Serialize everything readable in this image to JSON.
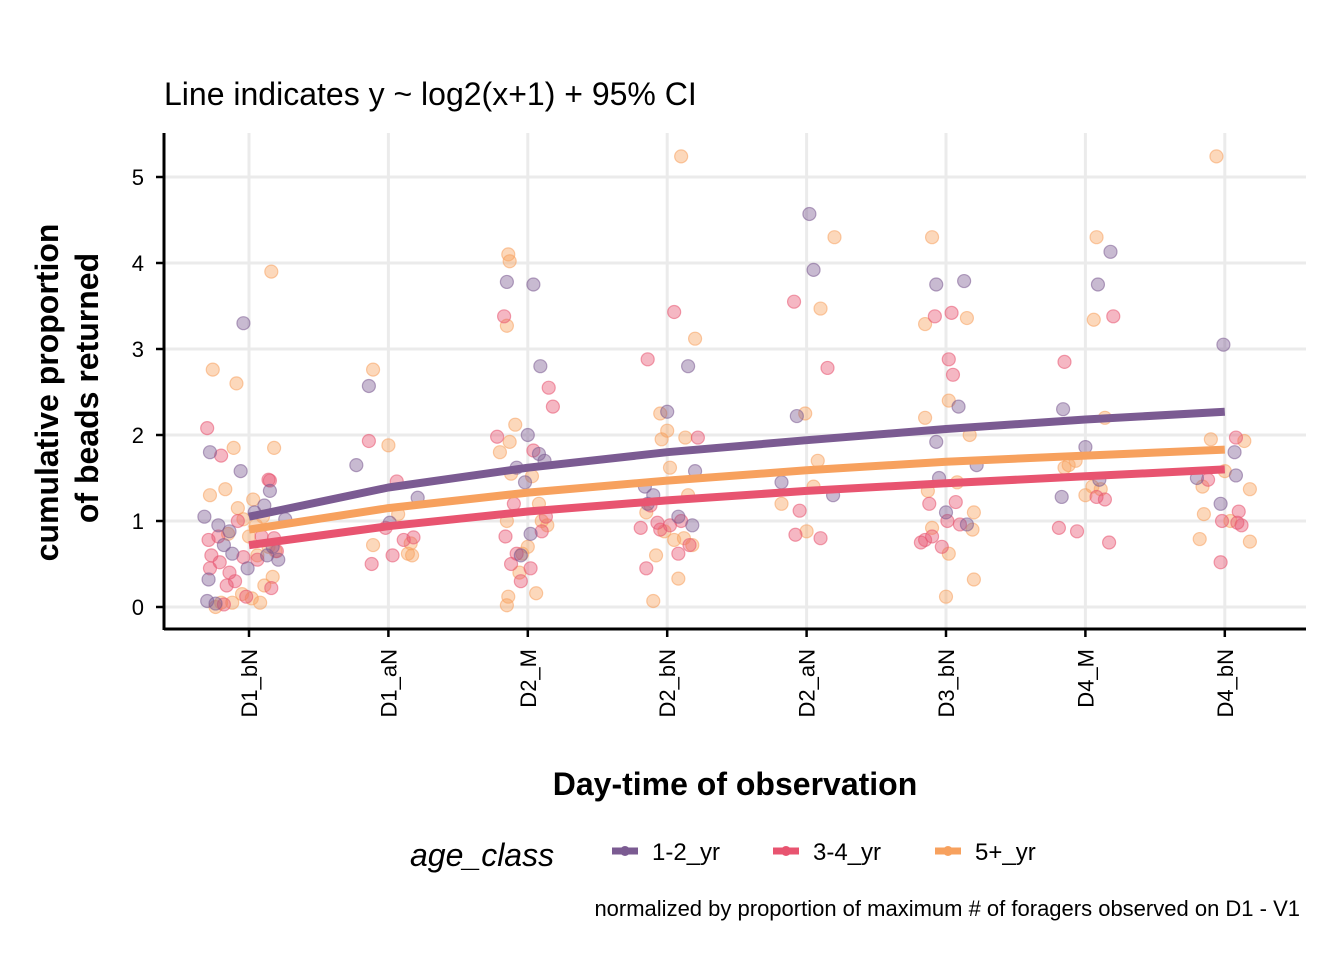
{
  "chart_data": {
    "type": "scatter",
    "title": "Line indicates y ~ log2(x+1) + 95% CI",
    "xlabel": "Day-time of observation",
    "ylabel_lines": [
      "cumulative proportion",
      "of beads returned"
    ],
    "caption": "normalized by proportion of maximum # of foragers observed on D1 - V1",
    "categories": [
      "D1_bN",
      "D1_aN",
      "D2_M",
      "D2_bN",
      "D2_aN",
      "D3_bN",
      "D4_M",
      "D4_bN"
    ],
    "yticks": [
      0,
      1,
      2,
      3,
      4,
      5
    ],
    "ylim": [
      -0.27,
      5.5
    ],
    "grid": true,
    "legend": {
      "title": "age_class",
      "position": "bottom",
      "entries": [
        "1-2_yr",
        "3-4_yr",
        "5+_yr"
      ]
    },
    "colors": {
      "1-2_yr": "#7b5b92",
      "3-4_yr": "#e85470",
      "5+_yr": "#f7a15e"
    },
    "series": [
      {
        "name": "1-2_yr",
        "fit": [
          1.05,
          1.39,
          1.62,
          1.8,
          1.94,
          2.07,
          2.18,
          2.27
        ],
        "points": [
          [
            [
              -0.32,
              1.05
            ],
            [
              -0.3,
              0.07
            ],
            [
              -0.29,
              0.32
            ],
            [
              -0.28,
              1.8
            ],
            [
              -0.24,
              0.04
            ],
            [
              -0.22,
              0.95
            ],
            [
              -0.18,
              0.72
            ],
            [
              -0.14,
              0.88
            ],
            [
              -0.12,
              0.62
            ],
            [
              -0.06,
              1.58
            ],
            [
              -0.04,
              3.3
            ],
            [
              -0.01,
              0.45
            ],
            [
              0.04,
              1.1
            ],
            [
              0.11,
              1.18
            ],
            [
              0.13,
              0.6
            ],
            [
              0.15,
              1.35
            ],
            [
              0.17,
              0.7
            ],
            [
              0.21,
              0.55
            ],
            [
              0.26,
              1.02
            ]
          ],
          [
            [
              -0.23,
              1.65
            ],
            [
              -0.14,
              2.57
            ],
            [
              0.21,
              1.27
            ],
            [
              0.01,
              0.98
            ]
          ],
          [
            [
              -0.15,
              3.78
            ],
            [
              0.04,
              3.75
            ],
            [
              0.09,
              2.8
            ],
            [
              0.0,
              2.0
            ],
            [
              -0.02,
              1.45
            ],
            [
              0.08,
              1.78
            ],
            [
              -0.08,
              1.62
            ],
            [
              0.12,
              1.7
            ],
            [
              0.02,
              0.85
            ],
            [
              -0.05,
              0.6
            ]
          ],
          [
            [
              0.0,
              2.27
            ],
            [
              0.15,
              2.8
            ],
            [
              0.2,
              1.58
            ],
            [
              0.18,
              0.95
            ],
            [
              -0.16,
              1.4
            ],
            [
              -0.14,
              1.2
            ],
            [
              -0.1,
              1.3
            ],
            [
              0.08,
              1.05
            ]
          ],
          [
            [
              0.02,
              4.57
            ],
            [
              0.05,
              3.92
            ],
            [
              -0.07,
              2.22
            ],
            [
              0.19,
              1.3
            ],
            [
              -0.18,
              1.45
            ]
          ],
          [
            [
              0.13,
              3.79
            ],
            [
              -0.07,
              3.75
            ],
            [
              0.09,
              2.33
            ],
            [
              0.22,
              1.65
            ],
            [
              -0.07,
              1.92
            ],
            [
              0.0,
              1.1
            ],
            [
              0.15,
              0.96
            ],
            [
              -0.05,
              1.5
            ]
          ],
          [
            [
              0.09,
              3.75
            ],
            [
              0.18,
              4.13
            ],
            [
              -0.16,
              2.3
            ],
            [
              0.0,
              1.86
            ],
            [
              -0.17,
              1.28
            ],
            [
              0.1,
              1.48
            ]
          ],
          [
            [
              -0.01,
              3.05
            ],
            [
              0.07,
              1.8
            ],
            [
              -0.2,
              1.5
            ],
            [
              0.08,
              1.53
            ],
            [
              -0.03,
              1.2
            ]
          ]
        ]
      },
      {
        "name": "3-4_yr",
        "fit": [
          0.72,
          0.94,
          1.11,
          1.24,
          1.35,
          1.44,
          1.52,
          1.6
        ],
        "points": [
          [
            [
              -0.3,
              2.08
            ],
            [
              -0.29,
              0.78
            ],
            [
              -0.28,
              0.45
            ],
            [
              -0.27,
              0.6
            ],
            [
              -0.22,
              0.82
            ],
            [
              -0.2,
              1.76
            ],
            [
              -0.16,
              0.25
            ],
            [
              -0.18,
              0.03
            ],
            [
              -0.14,
              0.4
            ],
            [
              -0.1,
              0.3
            ],
            [
              -0.08,
              1.0
            ],
            [
              -0.04,
              0.58
            ],
            [
              -0.02,
              0.12
            ],
            [
              0.06,
              0.55
            ],
            [
              0.15,
              1.47
            ],
            [
              0.14,
              1.48
            ],
            [
              0.16,
              0.22
            ],
            [
              0.18,
              0.8
            ],
            [
              0.2,
              0.65
            ],
            [
              -0.21,
              0.52
            ],
            [
              0.09,
              0.82
            ]
          ],
          [
            [
              -0.14,
              1.93
            ],
            [
              0.06,
              1.46
            ],
            [
              -0.12,
              0.5
            ],
            [
              0.03,
              0.6
            ],
            [
              0.11,
              0.78
            ],
            [
              -0.02,
              0.92
            ],
            [
              0.18,
              0.81
            ]
          ],
          [
            [
              -0.22,
              1.98
            ],
            [
              -0.17,
              3.38
            ],
            [
              0.15,
              2.55
            ],
            [
              0.18,
              2.33
            ],
            [
              -0.16,
              0.82
            ],
            [
              -0.08,
              0.62
            ],
            [
              0.02,
              0.45
            ],
            [
              -0.1,
              1.2
            ],
            [
              0.04,
              1.82
            ],
            [
              -0.12,
              0.5
            ],
            [
              0.1,
              0.88
            ],
            [
              0.13,
              1.05
            ],
            [
              -0.05,
              0.3
            ]
          ],
          [
            [
              -0.14,
              2.88
            ],
            [
              0.05,
              3.43
            ],
            [
              0.22,
              1.97
            ],
            [
              -0.15,
              0.45
            ],
            [
              -0.05,
              0.9
            ],
            [
              0.1,
              1.0
            ],
            [
              0.16,
              0.72
            ],
            [
              -0.12,
              1.18
            ],
            [
              0.02,
              0.95
            ],
            [
              0.08,
              0.62
            ],
            [
              -0.19,
              0.92
            ],
            [
              -0.07,
              0.98
            ]
          ],
          [
            [
              -0.09,
              3.55
            ],
            [
              0.15,
              2.78
            ],
            [
              -0.08,
              0.84
            ],
            [
              0.1,
              0.8
            ],
            [
              -0.05,
              1.12
            ]
          ],
          [
            [
              0.04,
              3.42
            ],
            [
              -0.08,
              3.38
            ],
            [
              0.02,
              2.88
            ],
            [
              0.05,
              2.7
            ],
            [
              -0.12,
              1.2
            ],
            [
              -0.15,
              0.78
            ],
            [
              0.07,
              1.22
            ],
            [
              -0.18,
              0.75
            ],
            [
              -0.03,
              0.7
            ],
            [
              0.1,
              0.96
            ],
            [
              0.01,
              1.0
            ],
            [
              -0.1,
              0.82
            ]
          ],
          [
            [
              -0.15,
              2.85
            ],
            [
              0.2,
              3.38
            ],
            [
              -0.19,
              0.92
            ],
            [
              -0.06,
              0.88
            ],
            [
              0.17,
              0.75
            ],
            [
              0.14,
              1.25
            ],
            [
              0.08,
              1.28
            ]
          ],
          [
            [
              0.08,
              1.97
            ],
            [
              -0.03,
              0.52
            ],
            [
              -0.12,
              1.48
            ],
            [
              0.09,
              0.98
            ],
            [
              -0.02,
              1.0
            ],
            [
              0.1,
              1.11
            ],
            [
              0.12,
              0.95
            ]
          ]
        ]
      },
      {
        "name": "5+_yr",
        "fit": [
          0.9,
          1.15,
          1.33,
          1.47,
          1.59,
          1.69,
          1.76,
          1.83
        ],
        "points": [
          [
            [
              -0.26,
              2.76
            ],
            [
              -0.28,
              1.3
            ],
            [
              -0.09,
              2.6
            ],
            [
              -0.11,
              1.85
            ],
            [
              0.16,
              3.9
            ],
            [
              0.18,
              1.85
            ],
            [
              0.03,
              1.25
            ],
            [
              -0.17,
              1.37
            ],
            [
              -0.08,
              1.15
            ],
            [
              -0.04,
              1.02
            ],
            [
              0.0,
              0.82
            ],
            [
              0.05,
              0.95
            ],
            [
              0.1,
              1.05
            ],
            [
              0.14,
              0.7
            ],
            [
              0.19,
              0.65
            ],
            [
              -0.24,
              0.0
            ],
            [
              -0.2,
              0.05
            ],
            [
              -0.12,
              0.05
            ],
            [
              -0.05,
              0.15
            ],
            [
              0.02,
              0.1
            ],
            [
              0.08,
              0.05
            ],
            [
              0.11,
              0.25
            ],
            [
              0.17,
              0.35
            ],
            [
              -0.15,
              0.85
            ],
            [
              0.06,
              0.6
            ]
          ],
          [
            [
              -0.11,
              2.76
            ],
            [
              0.0,
              1.88
            ],
            [
              -0.11,
              0.72
            ],
            [
              0.16,
              0.74
            ],
            [
              0.17,
              0.6
            ],
            [
              0.14,
              0.62
            ],
            [
              0.07,
              1.08
            ]
          ],
          [
            [
              -0.14,
              4.1
            ],
            [
              -0.13,
              4.02
            ],
            [
              -0.15,
              3.27
            ],
            [
              -0.13,
              1.92
            ],
            [
              -0.09,
              2.12
            ],
            [
              -0.2,
              1.8
            ],
            [
              -0.15,
              1.0
            ],
            [
              -0.14,
              0.12
            ],
            [
              -0.15,
              0.02
            ],
            [
              0.06,
              0.16
            ],
            [
              0.1,
              1.0
            ],
            [
              0.08,
              1.2
            ],
            [
              -0.04,
              0.62
            ],
            [
              0.03,
              1.52
            ],
            [
              0.14,
              0.95
            ],
            [
              -0.12,
              1.55
            ],
            [
              -0.06,
              0.4
            ],
            [
              0.0,
              0.7
            ]
          ],
          [
            [
              0.1,
              5.24
            ],
            [
              0.2,
              3.12
            ],
            [
              -0.05,
              2.25
            ],
            [
              0.13,
              1.97
            ],
            [
              -0.04,
              1.95
            ],
            [
              0.0,
              2.05
            ],
            [
              -0.15,
              1.1
            ],
            [
              0.08,
              0.33
            ],
            [
              -0.1,
              0.07
            ],
            [
              0.05,
              0.78
            ],
            [
              -0.08,
              0.6
            ],
            [
              0.12,
              0.8
            ],
            [
              0.15,
              1.3
            ],
            [
              0.02,
              1.62
            ],
            [
              -0.02,
              0.88
            ],
            [
              0.18,
              0.72
            ]
          ],
          [
            [
              0.2,
              4.3
            ],
            [
              0.1,
              3.47
            ],
            [
              -0.01,
              2.25
            ],
            [
              0.08,
              1.7
            ],
            [
              -0.18,
              1.2
            ],
            [
              0.0,
              0.88
            ],
            [
              0.05,
              1.4
            ]
          ],
          [
            [
              -0.1,
              4.3
            ],
            [
              -0.15,
              3.29
            ],
            [
              0.15,
              3.36
            ],
            [
              0.02,
              2.4
            ],
            [
              -0.15,
              2.2
            ],
            [
              0.17,
              2.0
            ],
            [
              -0.1,
              0.92
            ],
            [
              0.2,
              1.1
            ],
            [
              0.0,
              0.12
            ],
            [
              0.2,
              0.32
            ],
            [
              0.02,
              0.62
            ],
            [
              0.19,
              0.9
            ],
            [
              -0.13,
              1.35
            ],
            [
              0.08,
              1.45
            ]
          ],
          [
            [
              0.08,
              4.3
            ],
            [
              0.06,
              3.34
            ],
            [
              0.14,
              2.2
            ],
            [
              -0.12,
              1.65
            ],
            [
              0.0,
              1.3
            ],
            [
              0.11,
              1.37
            ],
            [
              -0.07,
              1.7
            ],
            [
              0.05,
              1.4
            ],
            [
              -0.15,
              1.62
            ]
          ],
          [
            [
              -0.06,
              5.24
            ],
            [
              -0.1,
              1.95
            ],
            [
              0.14,
              1.93
            ],
            [
              0.18,
              1.37
            ],
            [
              -0.16,
              1.4
            ],
            [
              -0.18,
              0.79
            ],
            [
              0.18,
              0.76
            ],
            [
              -0.15,
              1.08
            ],
            [
              0.04,
              1.0
            ],
            [
              0.0,
              1.58
            ]
          ]
        ]
      }
    ]
  }
}
